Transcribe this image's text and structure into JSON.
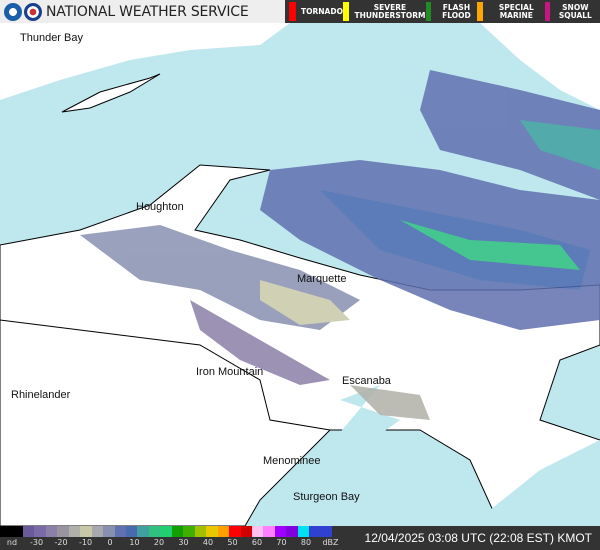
{
  "header": {
    "title": "NATIONAL WEATHER SERVICE",
    "warnings": [
      {
        "label": "TORNADO",
        "color": "#ff0000"
      },
      {
        "label": "SEVERE THUNDERSTORM",
        "color": "#ffff00"
      },
      {
        "label": "FLASH FLOOD",
        "color": "#228b22"
      },
      {
        "label": "SPECIAL MARINE",
        "color": "#ffa500"
      },
      {
        "label": "SNOW SQUALL",
        "color": "#c71585"
      }
    ]
  },
  "map": {
    "water_color": "#bfe7ee",
    "land_color": "#ffffff",
    "cities": [
      "Thunder Bay",
      "Houghton",
      "Marquette",
      "Iron Mountain",
      "Escanaba",
      "Rhinelander",
      "Menominee",
      "Sturgeon Bay"
    ]
  },
  "legend": {
    "unit": "dBZ",
    "ticks": [
      "nd",
      "-30",
      "-20",
      "-10",
      "0",
      "10",
      "20",
      "30",
      "40",
      "50",
      "60",
      "70",
      "80",
      "dBZ"
    ],
    "colors": [
      "#000000",
      "#000000",
      "#6a5a9a",
      "#7a6aa8",
      "#8a80a8",
      "#9a94a0",
      "#b0b0a8",
      "#c8c8a8",
      "#a8a8b0",
      "#8890b0",
      "#6070b0",
      "#4a6ab0",
      "#40a0a0",
      "#30c080",
      "#20d070",
      "#10a000",
      "#40b000",
      "#a0c000",
      "#e8c800",
      "#ffa000",
      "#ff0000",
      "#d00000",
      "#ffc0f0",
      "#ff80ff",
      "#a000ff",
      "#8000e0",
      "#00e0f0",
      "#3040d0",
      "#3040d0"
    ]
  },
  "footer": {
    "timestamp": "12/04/2025 03:08 UTC (22:08 EST) KMOT"
  }
}
